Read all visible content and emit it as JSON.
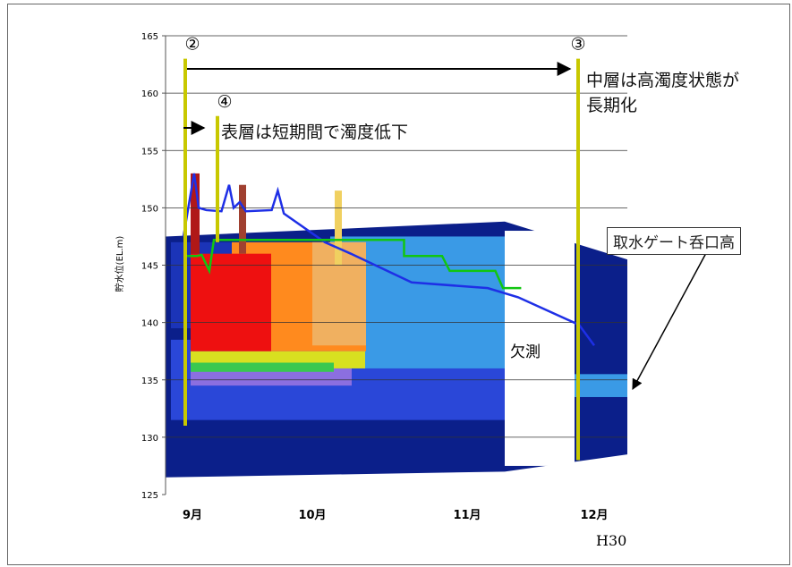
{
  "chart_data": {
    "type": "heatmap",
    "title": "",
    "xlabel": "",
    "ylabel": "貯水位(EL.m)",
    "ylim": [
      125,
      165
    ],
    "yticks": [
      125,
      130,
      135,
      140,
      145,
      150,
      155,
      160,
      165
    ],
    "gridlines": [
      130,
      135,
      140,
      145,
      150,
      155,
      160
    ],
    "xticks": [
      {
        "label": "9月"
      },
      {
        "label": "10月"
      },
      {
        "label": "11月"
      },
      {
        "label": "12月"
      }
    ],
    "year_label": "H30",
    "missing_label": "欠測",
    "series": [
      {
        "name": "貯水位",
        "color": "#1e2fe6",
        "values": [
          [
            0,
            147.5
          ],
          [
            0.07,
            153
          ],
          [
            0.1,
            150
          ],
          [
            0.15,
            149.8
          ],
          [
            0.25,
            149.7
          ],
          [
            0.3,
            152
          ],
          [
            0.33,
            150
          ],
          [
            0.37,
            150.5
          ],
          [
            0.41,
            149.7
          ],
          [
            0.58,
            149.8
          ],
          [
            0.62,
            151.5
          ],
          [
            0.66,
            149.5
          ],
          [
            0.93,
            147
          ],
          [
            1.1,
            146
          ],
          [
            1.5,
            143.5
          ],
          [
            2.0,
            143
          ],
          [
            2.2,
            142.2
          ],
          [
            2.6,
            139.8
          ],
          [
            2.7,
            138
          ]
        ]
      },
      {
        "name": "取水ゲート呑口高",
        "color": "#11c611",
        "values": [
          [
            0,
            145.8
          ],
          [
            0.09,
            145.8
          ],
          [
            0.12,
            145.9
          ],
          [
            0.17,
            144.5
          ],
          [
            0.2,
            147.2
          ],
          [
            1.45,
            147.2
          ],
          [
            1.45,
            145.8
          ],
          [
            1.7,
            145.8
          ],
          [
            1.75,
            144.5
          ],
          [
            2.05,
            144.5
          ],
          [
            2.1,
            143
          ],
          [
            2.22,
            143
          ]
        ]
      }
    ],
    "markers": [
      {
        "label": "②",
        "top": 163,
        "bottom": 131
      },
      {
        "label": "④",
        "top": 158,
        "bottom": 147
      },
      {
        "label": "③",
        "top": 163,
        "bottom": 128
      }
    ]
  },
  "annotations": {
    "arrow_text_top": "中層は高濁度状態が",
    "arrow_text_top2": "長期化",
    "arrow_text_mid": "表層は短期間で濁度低下",
    "callout": "取水ゲート呑口高"
  }
}
